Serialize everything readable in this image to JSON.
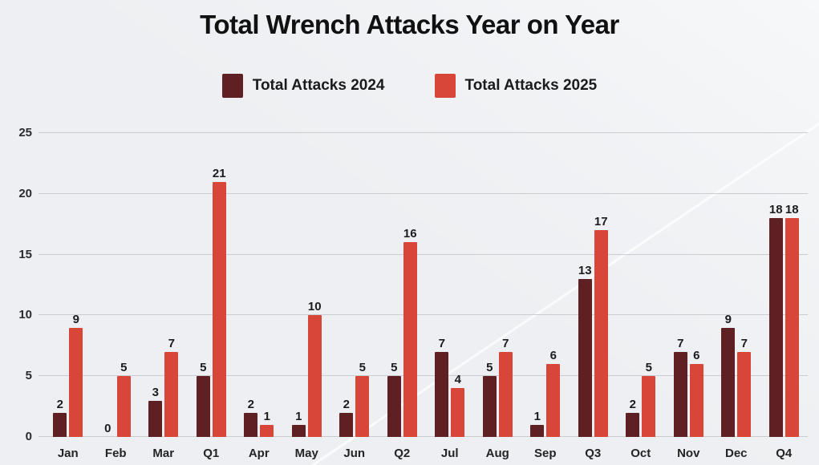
{
  "chart_data": {
    "type": "bar",
    "title": "Total Wrench Attacks Year on Year",
    "categories": [
      "Jan",
      "Feb",
      "Mar",
      "Q1",
      "Apr",
      "May",
      "Jun",
      "Q2",
      "Jul",
      "Aug",
      "Sep",
      "Q3",
      "Oct",
      "Nov",
      "Dec",
      "Q4"
    ],
    "series": [
      {
        "name": "Total Attacks 2024",
        "color": "#5f2023",
        "values": [
          2,
          0,
          3,
          5,
          2,
          1,
          2,
          5,
          7,
          5,
          1,
          13,
          2,
          7,
          9,
          18
        ]
      },
      {
        "name": "Total Attacks 2025",
        "color": "#d8463a",
        "values": [
          9,
          5,
          7,
          21,
          1,
          10,
          5,
          16,
          4,
          7,
          6,
          17,
          5,
          6,
          7,
          18
        ]
      }
    ],
    "xlabel": "",
    "ylabel": "",
    "ylim": [
      0,
      25
    ],
    "yticks": [
      0,
      5,
      10,
      15,
      20,
      25
    ],
    "grid": true,
    "legend_position": "top",
    "value_labels": true,
    "colors": {
      "background": "#edeff2",
      "gridline": "#c9ccd1",
      "title_text": "#111111",
      "axis_text": "#2b2b2b"
    }
  }
}
